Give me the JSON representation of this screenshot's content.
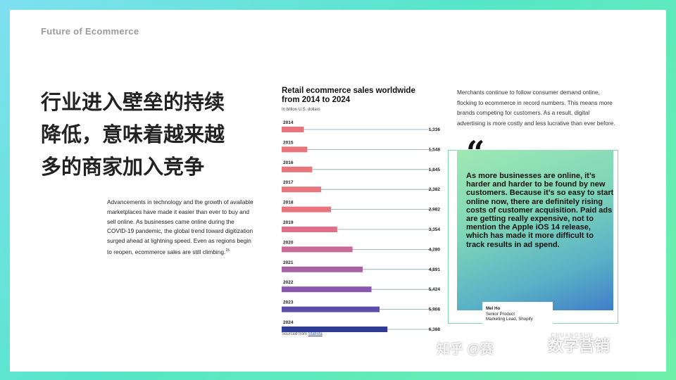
{
  "section_title": "Future  of Ecommerce",
  "heading_lines": [
    "行业进入壁垒的持续",
    "降低，意味着越来越",
    "多的商家加入竞争"
  ],
  "body_text": "Advancements in technology and the growth of available marketplaces have made it easier than ever to buy and sell online. As businesses came online during the COVID-19 pandemic, the global trend toward digitization surged ahead at lightning speed. Even as regions begin to reopen, ecommerce sales are still climbing.",
  "body_footnote": "15",
  "intro_text": "Merchants continue to follow consumer demand online, flocking to ecommerce in record numbers. This means more brands competing for customers. As a result, digital advertising is more costly and less lucrative than ever before.",
  "quote": {
    "mark": "“",
    "text": "As more businesses are online, it’s harder and harder to be found by new customers. Because it’s so easy to start online now, there are definitely rising costs of customer acquisition. Paid ads are getting really expensive, not to mention the Apple iOS 14 release, which has made it more difficult to track results in ad spend.",
    "name": "Mel Ho",
    "role_line1": "Senior Product",
    "role_line2": "Marketing Lead, Shopify"
  },
  "source": {
    "prefix": "Sourced from",
    "link": "Statista"
  },
  "watermark": {
    "text": "知乎 @赛",
    "logo": "数字营销",
    "latin": "CHUANGSHU"
  },
  "chart_data": {
    "type": "bar",
    "orientation": "horizontal",
    "title": "Retail ecommerce sales worldwide from 2014 to 2024",
    "unit_label": "In billion U.S. dollars",
    "categories": [
      "2014",
      "2015",
      "2016",
      "2017",
      "2018",
      "2019",
      "2020",
      "2021",
      "2022",
      "2023",
      "2024"
    ],
    "values": [
      1336,
      1548,
      1845,
      2382,
      2982,
      3354,
      4280,
      4891,
      5424,
      5908,
      6388
    ],
    "value_labels": [
      "1,336",
      "1,548",
      "1,845",
      "2,382",
      "2,982",
      "3,354",
      "4,280",
      "4,891",
      "5,424",
      "5,908",
      "6,388"
    ],
    "bar_colors": [
      "#e8747c",
      "#e8747c",
      "#e8747c",
      "#e8747c",
      "#e8747c",
      "#e0708a",
      "#c8699a",
      "#a660a4",
      "#8a58ac",
      "#5b4ea8",
      "#2f3d96"
    ],
    "xlim": [
      0,
      9000
    ],
    "leader_line_color": "#8aa0a8"
  }
}
